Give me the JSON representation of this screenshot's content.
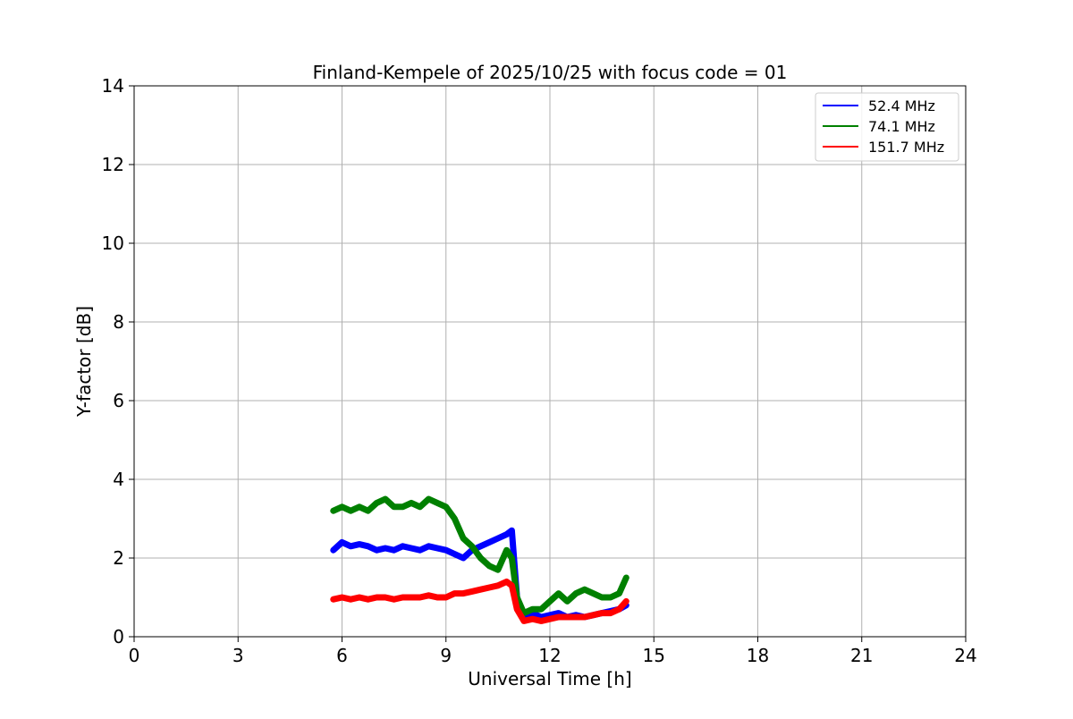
{
  "chart_data": {
    "type": "line",
    "title": "Finland-Kempele of 2025/10/25 with focus code = 01",
    "xlabel": "Universal Time [h]",
    "ylabel": "Y-factor [dB]",
    "xlim": [
      0,
      24
    ],
    "ylim": [
      0,
      14
    ],
    "xticks": [
      0,
      3,
      6,
      9,
      12,
      15,
      18,
      21,
      24
    ],
    "yticks": [
      0,
      2,
      4,
      6,
      8,
      10,
      12,
      14
    ],
    "grid": true,
    "legend": "top-right",
    "series": [
      {
        "name": "  52.4 MHz",
        "color": "#0000ff",
        "x": [
          5.75,
          6.0,
          6.25,
          6.5,
          6.75,
          7.0,
          7.25,
          7.5,
          7.75,
          8.0,
          8.25,
          8.5,
          8.75,
          9.0,
          9.25,
          9.5,
          9.75,
          10.0,
          10.25,
          10.5,
          10.75,
          10.9,
          11.05,
          11.25,
          11.5,
          11.75,
          12.0,
          12.25,
          12.5,
          12.75,
          13.0,
          13.25,
          13.5,
          13.75,
          14.0,
          14.2
        ],
        "y": [
          2.2,
          2.4,
          2.3,
          2.35,
          2.3,
          2.2,
          2.25,
          2.2,
          2.3,
          2.25,
          2.2,
          2.3,
          2.25,
          2.2,
          2.1,
          2.0,
          2.2,
          2.3,
          2.4,
          2.5,
          2.6,
          2.7,
          1.0,
          0.5,
          0.6,
          0.5,
          0.55,
          0.6,
          0.5,
          0.55,
          0.5,
          0.55,
          0.6,
          0.65,
          0.7,
          0.8
        ]
      },
      {
        "name": "  74.1 MHz",
        "color": "#008000",
        "x": [
          5.75,
          6.0,
          6.25,
          6.5,
          6.75,
          7.0,
          7.25,
          7.5,
          7.75,
          8.0,
          8.25,
          8.5,
          8.75,
          9.0,
          9.25,
          9.5,
          9.75,
          10.0,
          10.25,
          10.5,
          10.75,
          10.9,
          11.05,
          11.25,
          11.5,
          11.75,
          12.0,
          12.25,
          12.5,
          12.75,
          13.0,
          13.25,
          13.5,
          13.75,
          14.0,
          14.2
        ],
        "y": [
          3.2,
          3.3,
          3.2,
          3.3,
          3.2,
          3.4,
          3.5,
          3.3,
          3.3,
          3.4,
          3.3,
          3.5,
          3.4,
          3.3,
          3.0,
          2.5,
          2.3,
          2.0,
          1.8,
          1.7,
          2.2,
          2.0,
          1.0,
          0.6,
          0.7,
          0.7,
          0.9,
          1.1,
          0.9,
          1.1,
          1.2,
          1.1,
          1.0,
          1.0,
          1.1,
          1.5
        ]
      },
      {
        "name": "151.7 MHz",
        "color": "#ff0000",
        "x": [
          5.75,
          6.0,
          6.25,
          6.5,
          6.75,
          7.0,
          7.25,
          7.5,
          7.75,
          8.0,
          8.25,
          8.5,
          8.75,
          9.0,
          9.25,
          9.5,
          9.75,
          10.0,
          10.25,
          10.5,
          10.75,
          10.9,
          11.05,
          11.25,
          11.5,
          11.75,
          12.0,
          12.25,
          12.5,
          12.75,
          13.0,
          13.25,
          13.5,
          13.75,
          14.0,
          14.2
        ],
        "y": [
          0.95,
          1.0,
          0.95,
          1.0,
          0.95,
          1.0,
          1.0,
          0.95,
          1.0,
          1.0,
          1.0,
          1.05,
          1.0,
          1.0,
          1.1,
          1.1,
          1.15,
          1.2,
          1.25,
          1.3,
          1.4,
          1.3,
          0.7,
          0.4,
          0.45,
          0.4,
          0.45,
          0.5,
          0.5,
          0.5,
          0.5,
          0.55,
          0.6,
          0.6,
          0.7,
          0.9
        ]
      }
    ]
  }
}
